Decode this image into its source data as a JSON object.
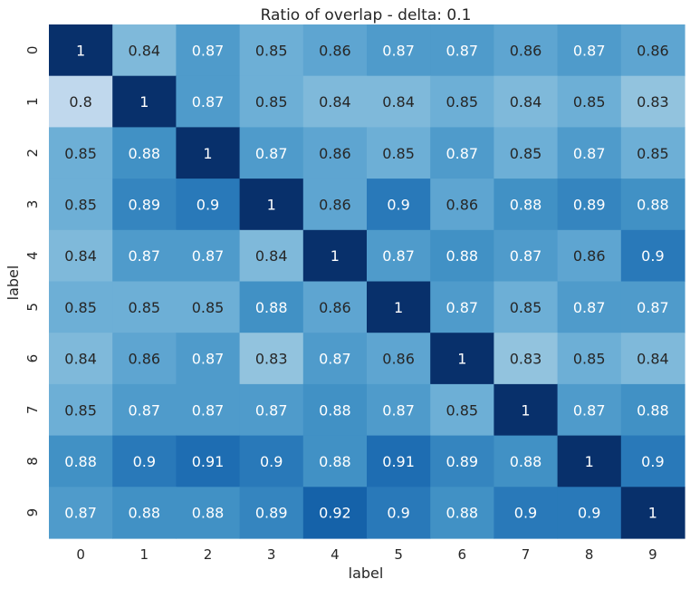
{
  "chart_data": {
    "type": "heatmap",
    "title": "Ratio of overlap - delta: 0.1",
    "xlabel": "label",
    "ylabel": "label",
    "x_ticks": [
      "0",
      "1",
      "2",
      "3",
      "4",
      "5",
      "6",
      "7",
      "8",
      "9"
    ],
    "y_ticks": [
      "0",
      "1",
      "2",
      "3",
      "4",
      "5",
      "6",
      "7",
      "8",
      "9"
    ],
    "colormap": "Blues",
    "vmin": 0.8,
    "vmax": 1.0,
    "colorbar": false,
    "cell_labels": [
      [
        "1",
        "0.84",
        "0.87",
        "0.85",
        "0.86",
        "0.87",
        "0.87",
        "0.86",
        "0.87",
        "0.86"
      ],
      [
        "0.8",
        "1",
        "0.87",
        "0.85",
        "0.84",
        "0.84",
        "0.85",
        "0.84",
        "0.85",
        "0.83"
      ],
      [
        "0.85",
        "0.88",
        "1",
        "0.87",
        "0.86",
        "0.85",
        "0.87",
        "0.85",
        "0.87",
        "0.85"
      ],
      [
        "0.85",
        "0.89",
        "0.9",
        "1",
        "0.86",
        "0.9",
        "0.86",
        "0.88",
        "0.89",
        "0.88"
      ],
      [
        "0.84",
        "0.87",
        "0.87",
        "0.84",
        "1",
        "0.87",
        "0.88",
        "0.87",
        "0.86",
        "0.9"
      ],
      [
        "0.85",
        "0.85",
        "0.85",
        "0.88",
        "0.86",
        "1",
        "0.87",
        "0.85",
        "0.87",
        "0.87"
      ],
      [
        "0.84",
        "0.86",
        "0.87",
        "0.83",
        "0.87",
        "0.86",
        "1",
        "0.83",
        "0.85",
        "0.84"
      ],
      [
        "0.85",
        "0.87",
        "0.87",
        "0.87",
        "0.88",
        "0.87",
        "0.85",
        "1",
        "0.87",
        "0.88"
      ],
      [
        "0.88",
        "0.9",
        "0.91",
        "0.9",
        "0.88",
        "0.91",
        "0.89",
        "0.88",
        "1",
        "0.9"
      ],
      [
        "0.87",
        "0.88",
        "0.88",
        "0.89",
        "0.92",
        "0.9",
        "0.88",
        "0.9",
        "0.9",
        "1"
      ]
    ]
  }
}
